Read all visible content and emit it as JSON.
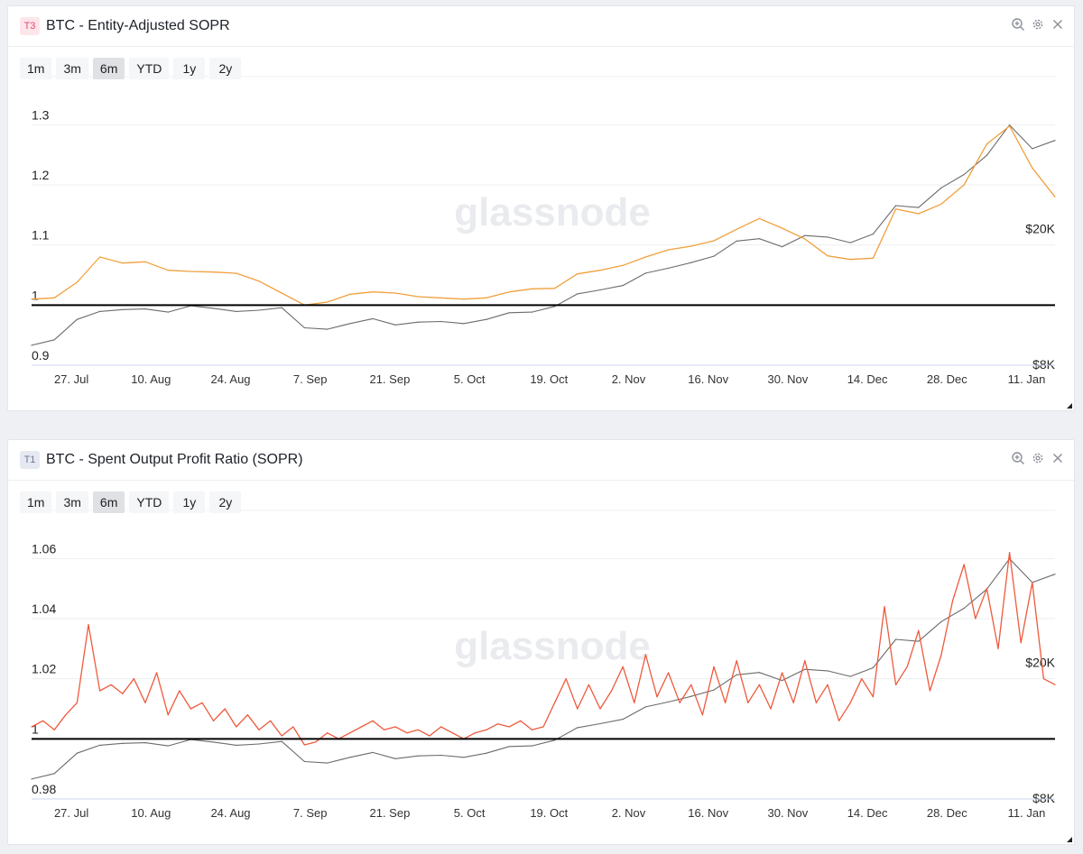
{
  "colors": {
    "price_line": "#6b6b6b",
    "entity_sopr_line": "#f0a03c",
    "sopr_line": "#ee5a3c",
    "baseline": "#000000",
    "watermark": "#e9ebee",
    "t3_badge": "#e7457a",
    "t1_badge": "#6f7890"
  },
  "watermark": "glassnode",
  "panels": [
    {
      "badge": "T3",
      "title": "BTC - Entity-Adjusted SOPR",
      "ranges": [
        "1m",
        "3m",
        "6m",
        "YTD",
        "1y",
        "2y"
      ],
      "active_range": "6m",
      "icons": [
        "zoom-in-icon",
        "gear-icon",
        "close-icon"
      ]
    },
    {
      "badge": "T1",
      "title": "BTC - Spent Output Profit Ratio (SOPR)",
      "ranges": [
        "1m",
        "3m",
        "6m",
        "YTD",
        "1y",
        "2y"
      ],
      "active_range": "6m",
      "icons": [
        "zoom-in-icon",
        "gear-icon",
        "close-icon"
      ]
    }
  ],
  "chart_data": [
    {
      "type": "line",
      "title": "BTC - Entity-Adjusted SOPR",
      "x_tick_labels": [
        "27. Jul",
        "10. Aug",
        "24. Aug",
        "7. Sep",
        "21. Sep",
        "5. Oct",
        "19. Oct",
        "2. Nov",
        "16. Nov",
        "30. Nov",
        "14. Dec",
        "28. Dec",
        "11. Jan"
      ],
      "x_range": [
        "2020-07-20",
        "2021-01-16"
      ],
      "y_left_ticks": [
        "0.9",
        "1",
        "1.1",
        "1.2",
        "1.3"
      ],
      "y_left_range": [
        0.9,
        1.32
      ],
      "y_right_ticks": [
        "$8K",
        "$20K"
      ],
      "y_right_scale": "log",
      "baseline": 1,
      "grid": true,
      "series": [
        {
          "name": "",
          "axis": "left",
          "color": "#f0a03c",
          "x": [
            "2020-07-20",
            "2020-07-24",
            "2020-07-28",
            "2020-08-01",
            "2020-08-05",
            "2020-08-09",
            "2020-08-13",
            "2020-08-17",
            "2020-08-21",
            "2020-08-25",
            "2020-08-29",
            "2020-09-02",
            "2020-09-06",
            "2020-09-10",
            "2020-09-14",
            "2020-09-18",
            "2020-09-22",
            "2020-09-26",
            "2020-09-30",
            "2020-10-04",
            "2020-10-08",
            "2020-10-12",
            "2020-10-16",
            "2020-10-20",
            "2020-10-24",
            "2020-10-28",
            "2020-11-01",
            "2020-11-05",
            "2020-11-09",
            "2020-11-13",
            "2020-11-17",
            "2020-11-21",
            "2020-11-25",
            "2020-11-29",
            "2020-12-03",
            "2020-12-07",
            "2020-12-11",
            "2020-12-15",
            "2020-12-19",
            "2020-12-23",
            "2020-12-27",
            "2020-12-31",
            "2021-01-04",
            "2021-01-08",
            "2021-01-12",
            "2021-01-16"
          ],
          "y": [
            1.01,
            1.012,
            1.038,
            1.08,
            1.07,
            1.072,
            1.058,
            1.056,
            1.055,
            1.053,
            1.04,
            1.02,
            1.0,
            1.005,
            1.018,
            1.022,
            1.02,
            1.014,
            1.012,
            1.01,
            1.012,
            1.022,
            1.027,
            1.028,
            1.052,
            1.058,
            1.066,
            1.08,
            1.092,
            1.098,
            1.107,
            1.126,
            1.144,
            1.128,
            1.11,
            1.082,
            1.076,
            1.078,
            1.16,
            1.152,
            1.168,
            1.2,
            1.268,
            1.298,
            1.228,
            1.18
          ]
        },
        {
          "name": "",
          "axis": "right",
          "color": "#6b6b6b",
          "x": [
            "2020-07-20",
            "2020-07-24",
            "2020-07-28",
            "2020-08-01",
            "2020-08-05",
            "2020-08-09",
            "2020-08-13",
            "2020-08-17",
            "2020-08-21",
            "2020-08-25",
            "2020-08-29",
            "2020-09-02",
            "2020-09-06",
            "2020-09-10",
            "2020-09-14",
            "2020-09-18",
            "2020-09-22",
            "2020-09-26",
            "2020-09-30",
            "2020-10-04",
            "2020-10-08",
            "2020-10-12",
            "2020-10-16",
            "2020-10-20",
            "2020-10-24",
            "2020-10-28",
            "2020-11-01",
            "2020-11-05",
            "2020-11-09",
            "2020-11-13",
            "2020-11-17",
            "2020-11-21",
            "2020-11-25",
            "2020-11-29",
            "2020-12-03",
            "2020-12-07",
            "2020-12-11",
            "2020-12-15",
            "2020-12-19",
            "2020-12-23",
            "2020-12-27",
            "2020-12-31",
            "2021-01-04",
            "2021-01-08",
            "2021-01-12",
            "2021-01-16"
          ],
          "y": [
            9150,
            9500,
            10900,
            11500,
            11650,
            11700,
            11450,
            11950,
            11750,
            11500,
            11600,
            11800,
            10300,
            10200,
            10600,
            10950,
            10500,
            10700,
            10750,
            10600,
            10900,
            11400,
            11450,
            11900,
            12950,
            13300,
            13700,
            14900,
            15400,
            16000,
            16700,
            18500,
            18800,
            17800,
            19200,
            19000,
            18300,
            19400,
            23500,
            23200,
            26500,
            29000,
            33000,
            40500,
            34500,
            36500
          ]
        }
      ]
    },
    {
      "type": "line",
      "title": "BTC - Spent Output Profit Ratio (SOPR)",
      "x_tick_labels": [
        "27. Jul",
        "10. Aug",
        "24. Aug",
        "7. Sep",
        "21. Sep",
        "5. Oct",
        "19. Oct",
        "2. Nov",
        "16. Nov",
        "30. Nov",
        "14. Dec",
        "28. Dec",
        "11. Jan"
      ],
      "x_range": [
        "2020-07-20",
        "2021-01-16"
      ],
      "y_left_ticks": [
        "0.98",
        "1",
        "1.02",
        "1.04",
        "1.06"
      ],
      "y_left_range": [
        0.98,
        1.064
      ],
      "y_right_ticks": [
        "$8K",
        "$20K"
      ],
      "y_right_scale": "log",
      "baseline": 1,
      "grid": true,
      "series": [
        {
          "name": "",
          "axis": "left",
          "color": "#ee5a3c",
          "x": [
            "2020-07-20",
            "2020-07-22",
            "2020-07-24",
            "2020-07-26",
            "2020-07-28",
            "2020-07-30",
            "2020-08-01",
            "2020-08-03",
            "2020-08-05",
            "2020-08-07",
            "2020-08-09",
            "2020-08-11",
            "2020-08-13",
            "2020-08-15",
            "2020-08-17",
            "2020-08-19",
            "2020-08-21",
            "2020-08-23",
            "2020-08-25",
            "2020-08-27",
            "2020-08-29",
            "2020-08-31",
            "2020-09-02",
            "2020-09-04",
            "2020-09-06",
            "2020-09-08",
            "2020-09-10",
            "2020-09-12",
            "2020-09-14",
            "2020-09-16",
            "2020-09-18",
            "2020-09-20",
            "2020-09-22",
            "2020-09-24",
            "2020-09-26",
            "2020-09-28",
            "2020-09-30",
            "2020-10-02",
            "2020-10-04",
            "2020-10-06",
            "2020-10-08",
            "2020-10-10",
            "2020-10-12",
            "2020-10-14",
            "2020-10-16",
            "2020-10-18",
            "2020-10-20",
            "2020-10-22",
            "2020-10-24",
            "2020-10-26",
            "2020-10-28",
            "2020-10-30",
            "2020-11-01",
            "2020-11-03",
            "2020-11-05",
            "2020-11-07",
            "2020-11-09",
            "2020-11-11",
            "2020-11-13",
            "2020-11-15",
            "2020-11-17",
            "2020-11-19",
            "2020-11-21",
            "2020-11-23",
            "2020-11-25",
            "2020-11-27",
            "2020-11-29",
            "2020-12-01",
            "2020-12-03",
            "2020-12-05",
            "2020-12-07",
            "2020-12-09",
            "2020-12-11",
            "2020-12-13",
            "2020-12-15",
            "2020-12-17",
            "2020-12-19",
            "2020-12-21",
            "2020-12-23",
            "2020-12-25",
            "2020-12-27",
            "2020-12-29",
            "2020-12-31",
            "2021-01-02",
            "2021-01-04",
            "2021-01-06",
            "2021-01-08",
            "2021-01-10",
            "2021-01-12",
            "2021-01-14",
            "2021-01-16"
          ],
          "y": [
            1.004,
            1.006,
            1.003,
            1.008,
            1.012,
            1.038,
            1.016,
            1.018,
            1.015,
            1.02,
            1.012,
            1.022,
            1.008,
            1.016,
            1.01,
            1.012,
            1.006,
            1.01,
            1.004,
            1.008,
            1.003,
            1.006,
            1.001,
            1.004,
            0.998,
            0.999,
            1.002,
            1.0,
            1.002,
            1.004,
            1.006,
            1.003,
            1.004,
            1.002,
            1.003,
            1.001,
            1.004,
            1.002,
            1.0,
            1.002,
            1.003,
            1.005,
            1.004,
            1.006,
            1.003,
            1.004,
            1.012,
            1.02,
            1.01,
            1.018,
            1.01,
            1.016,
            1.024,
            1.012,
            1.028,
            1.014,
            1.022,
            1.012,
            1.018,
            1.008,
            1.024,
            1.012,
            1.026,
            1.012,
            1.018,
            1.01,
            1.022,
            1.012,
            1.026,
            1.012,
            1.018,
            1.006,
            1.012,
            1.02,
            1.014,
            1.044,
            1.018,
            1.024,
            1.036,
            1.016,
            1.028,
            1.046,
            1.058,
            1.04,
            1.05,
            1.03,
            1.062,
            1.032,
            1.052,
            1.02,
            1.018
          ]
        },
        {
          "name": "",
          "axis": "right",
          "color": "#6b6b6b",
          "x": [
            "2020-07-20",
            "2020-07-24",
            "2020-07-28",
            "2020-08-01",
            "2020-08-05",
            "2020-08-09",
            "2020-08-13",
            "2020-08-17",
            "2020-08-21",
            "2020-08-25",
            "2020-08-29",
            "2020-09-02",
            "2020-09-06",
            "2020-09-10",
            "2020-09-14",
            "2020-09-18",
            "2020-09-22",
            "2020-09-26",
            "2020-09-30",
            "2020-10-04",
            "2020-10-08",
            "2020-10-12",
            "2020-10-16",
            "2020-10-20",
            "2020-10-24",
            "2020-10-28",
            "2020-11-01",
            "2020-11-05",
            "2020-11-09",
            "2020-11-13",
            "2020-11-17",
            "2020-11-21",
            "2020-11-25",
            "2020-11-29",
            "2020-12-03",
            "2020-12-07",
            "2020-12-11",
            "2020-12-15",
            "2020-12-19",
            "2020-12-23",
            "2020-12-27",
            "2020-12-31",
            "2021-01-04",
            "2021-01-08",
            "2021-01-12",
            "2021-01-16"
          ],
          "y": [
            9150,
            9500,
            10900,
            11500,
            11650,
            11700,
            11450,
            11950,
            11750,
            11500,
            11600,
            11800,
            10300,
            10200,
            10600,
            10950,
            10500,
            10700,
            10750,
            10600,
            10900,
            11400,
            11450,
            11900,
            12950,
            13300,
            13700,
            14900,
            15400,
            16000,
            16700,
            18500,
            18800,
            17800,
            19200,
            19000,
            18300,
            19400,
            23500,
            23200,
            26500,
            29000,
            33000,
            40500,
            34500,
            36500
          ]
        }
      ]
    }
  ]
}
